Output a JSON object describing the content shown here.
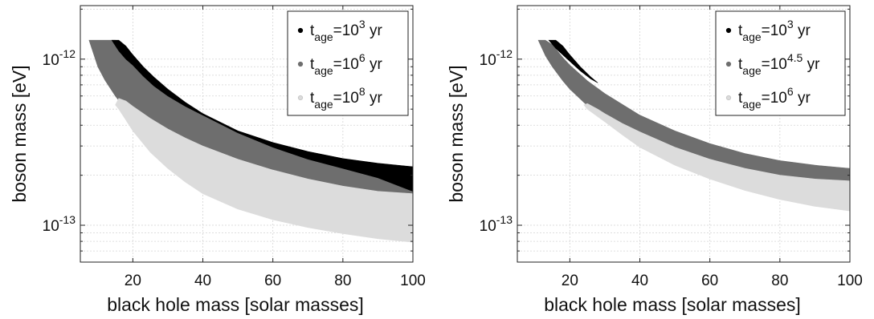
{
  "chart_data": [
    {
      "type": "area",
      "xlabel": "black hole mass [solar masses]",
      "ylabel": "boson mass [eV]",
      "xlim": [
        5,
        100
      ],
      "ylim": [
        6e-14,
        2.1e-12
      ],
      "yscale": "log",
      "grid": true,
      "legend_position": "top-right",
      "x_ticks": [
        {
          "value": 20,
          "label": "20"
        },
        {
          "value": 40,
          "label": "40"
        },
        {
          "value": 60,
          "label": "60"
        },
        {
          "value": 80,
          "label": "80"
        },
        {
          "value": 100,
          "label": "100"
        }
      ],
      "y_ticks": [
        {
          "value": 1e-12,
          "base": "10",
          "exp": "-12"
        },
        {
          "value": 1e-13,
          "base": "10",
          "exp": "-13"
        }
      ],
      "series": [
        {
          "name": "10^6 yr",
          "legend": {
            "prefix": "t",
            "sub": "age",
            "mid": "=10",
            "exp": "6",
            "suffix": " yr"
          },
          "color": "#6e6e6e",
          "x": [
            7.5,
            10,
            12,
            15,
            20,
            25,
            30,
            40,
            50,
            60,
            70,
            80,
            90,
            100
          ],
          "upper": [
            1.3e-12,
            1.3e-12,
            1.3e-12,
            1.3e-12,
            1e-12,
            8e-13,
            6.4e-13,
            4.6e-13,
            3.6e-13,
            3.05e-13,
            2.7e-13,
            2.45e-13,
            2.3e-13,
            2.2e-13
          ],
          "lower": [
            1.3e-12,
            9e-13,
            7.5e-13,
            6e-13,
            4.4e-13,
            3.5e-13,
            2.9e-13,
            2.25e-13,
            1.85e-13,
            1.6e-13,
            1.42e-13,
            1.3e-13,
            1.2e-13,
            1.12e-13
          ]
        },
        {
          "name": "10^3 yr",
          "legend": {
            "prefix": "t",
            "sub": "age",
            "mid": "=10",
            "exp": "3",
            "suffix": " yr"
          },
          "color": "#000000",
          "x": [
            14,
            16,
            18,
            20,
            23,
            26,
            30,
            35,
            40,
            50,
            60,
            70,
            80,
            90,
            100
          ],
          "upper": [
            1.3e-12,
            1.3e-12,
            1.2e-12,
            1.06e-12,
            9e-13,
            7.8e-13,
            6.6e-13,
            5.5e-13,
            4.7e-13,
            3.7e-13,
            3.15e-13,
            2.78e-13,
            2.52e-13,
            2.36e-13,
            2.25e-13
          ],
          "lower": [
            1.3e-12,
            1.12e-12,
            1e-12,
            9.2e-13,
            7.9e-13,
            6.9e-13,
            6e-13,
            5.2e-13,
            4.6e-13,
            3.6e-13,
            2.95e-13,
            2.5e-13,
            2.2e-13,
            1.93e-13,
            1.6e-13
          ]
        },
        {
          "name": "10^8 yr",
          "legend": {
            "prefix": "t",
            "sub": "age",
            "mid": "=10",
            "exp": "8",
            "suffix": " yr"
          },
          "color": "#dcdcdc",
          "x": [
            15,
            16,
            18,
            20,
            25,
            30,
            35,
            40,
            50,
            60,
            70,
            80,
            90,
            100
          ],
          "upper": [
            5.3e-13,
            5.8e-13,
            5.6e-13,
            5.2e-13,
            4.4e-13,
            3.8e-13,
            3.35e-13,
            3e-13,
            2.5e-13,
            2.15e-13,
            1.9e-13,
            1.72e-13,
            1.6e-13,
            1.55e-13
          ],
          "lower": [
            5.3e-13,
            5e-13,
            4.3e-13,
            3.7e-13,
            2.75e-13,
            2.2e-13,
            1.82e-13,
            1.55e-13,
            1.25e-13,
            1.08e-13,
            9.7e-14,
            8.9e-14,
            8.3e-14,
            7.9e-14
          ]
        }
      ]
    },
    {
      "type": "area",
      "xlabel": "black hole mass [solar masses]",
      "ylabel": "boson mass [eV]",
      "xlim": [
        5,
        100
      ],
      "ylim": [
        6e-14,
        2.1e-12
      ],
      "yscale": "log",
      "grid": true,
      "legend_position": "top-right",
      "x_ticks": [
        {
          "value": 20,
          "label": "20"
        },
        {
          "value": 40,
          "label": "40"
        },
        {
          "value": 60,
          "label": "60"
        },
        {
          "value": 80,
          "label": "80"
        },
        {
          "value": 100,
          "label": "100"
        }
      ],
      "y_ticks": [
        {
          "value": 1e-12,
          "base": "10",
          "exp": "-12"
        },
        {
          "value": 1e-13,
          "base": "10",
          "exp": "-13"
        }
      ],
      "series": [
        {
          "name": "10^4.5 yr",
          "legend": {
            "prefix": "t",
            "sub": "age",
            "mid": "=10",
            "exp": "4.5",
            "suffix": " yr"
          },
          "color": "#6e6e6e",
          "x": [
            11,
            13,
            15,
            18,
            20,
            25,
            30,
            40,
            50,
            60,
            70,
            80,
            90,
            100
          ],
          "upper": [
            1.3e-12,
            1.3e-12,
            1.22e-12,
            1.02e-12,
            9.2e-13,
            7.4e-13,
            6.2e-13,
            4.6e-13,
            3.7e-13,
            3.1e-13,
            2.7e-13,
            2.45e-13,
            2.3e-13,
            2.2e-13
          ],
          "lower": [
            1.3e-12,
            1.05e-12,
            9e-13,
            7.4e-13,
            6.6e-13,
            5.25e-13,
            4.3e-13,
            3.25e-13,
            2.6e-13,
            2.22e-13,
            1.98e-13,
            1.82e-13,
            1.7e-13,
            1.62e-13
          ]
        },
        {
          "name": "10^3 yr",
          "legend": {
            "prefix": "t",
            "sub": "age",
            "mid": "=10",
            "exp": "3",
            "suffix": " yr"
          },
          "color": "#000000",
          "x": [
            14,
            16,
            18,
            20,
            23,
            26,
            28
          ],
          "upper": [
            1.3e-12,
            1.3e-12,
            1.2e-12,
            1.06e-12,
            9e-13,
            7.8e-13,
            7.2e-13
          ],
          "lower": [
            1.3e-12,
            1.16e-12,
            1.06e-12,
            9.7e-13,
            8.5e-13,
            7.6e-13,
            7.2e-13
          ]
        },
        {
          "name": "10^6 yr",
          "legend": {
            "prefix": "t",
            "sub": "age",
            "mid": "=10",
            "exp": "6",
            "suffix": " yr"
          },
          "color": "#dcdcdc",
          "x": [
            24,
            25,
            28,
            30,
            35,
            40,
            50,
            60,
            70,
            80,
            90,
            100
          ],
          "upper": [
            5.3e-13,
            5.4e-13,
            5e-13,
            4.7e-13,
            4.1e-13,
            3.65e-13,
            2.95e-13,
            2.5e-13,
            2.2e-13,
            2e-13,
            1.9e-13,
            1.85e-13
          ],
          "lower": [
            5.3e-13,
            5e-13,
            4.5e-13,
            4.2e-13,
            3.5e-13,
            2.95e-13,
            2.3e-13,
            1.9e-13,
            1.62e-13,
            1.43e-13,
            1.3e-13,
            1.22e-13
          ]
        }
      ]
    }
  ]
}
